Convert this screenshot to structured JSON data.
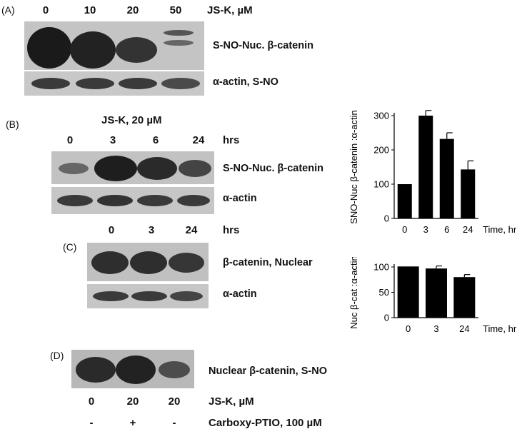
{
  "panel_A": {
    "label": "(A)",
    "lanes": [
      "0",
      "10",
      "20",
      "50"
    ],
    "treatment": "JS-K, µM",
    "blot_labels": [
      "S-NO-Nuc. β-catenin",
      "α-actin, S-NO"
    ]
  },
  "panel_B": {
    "label": "(B)",
    "treatment": "JS-K, 20 µM",
    "lanes": [
      "0",
      "3",
      "6",
      "24"
    ],
    "unit": "hrs",
    "blot_labels": [
      "S-NO-Nuc. β-catenin",
      "α-actin"
    ]
  },
  "panel_C": {
    "label": "(C)",
    "lanes": [
      "0",
      "3",
      "24"
    ],
    "unit": "hrs",
    "blot_labels": [
      "β-catenin, Nuclear",
      "α-actin"
    ]
  },
  "panel_D": {
    "label": "(D)",
    "blot_label": "Nuclear β-catenin, S-NO",
    "row1": [
      "0",
      "20",
      "20"
    ],
    "row1_label": "JS-K, µM",
    "row2": [
      "-",
      "+",
      "-"
    ],
    "row2_label": "Carboxy-PTIO, 100 µM"
  },
  "chart_data": [
    {
      "type": "bar",
      "categories": [
        "0",
        "3",
        "6",
        "24"
      ],
      "values": [
        100,
        300,
        232,
        143
      ],
      "errors": [
        0,
        15,
        18,
        25
      ],
      "xlabel": "Time, hr",
      "ylabel": "SNO-Nuc β-catenin :α-actin",
      "ylim": [
        0,
        300
      ],
      "yticks": [
        0,
        100,
        200,
        300
      ],
      "bar_color": "#000000"
    },
    {
      "type": "bar",
      "categories": [
        "0",
        "3",
        "24"
      ],
      "values": [
        101,
        97,
        80
      ],
      "errors": [
        0,
        5,
        5
      ],
      "xlabel": "Time, hr",
      "ylabel": "Nuc β-cat :α-actin",
      "ylim": [
        0,
        100
      ],
      "yticks": [
        0,
        50,
        100
      ],
      "bar_color": "#000000"
    }
  ]
}
